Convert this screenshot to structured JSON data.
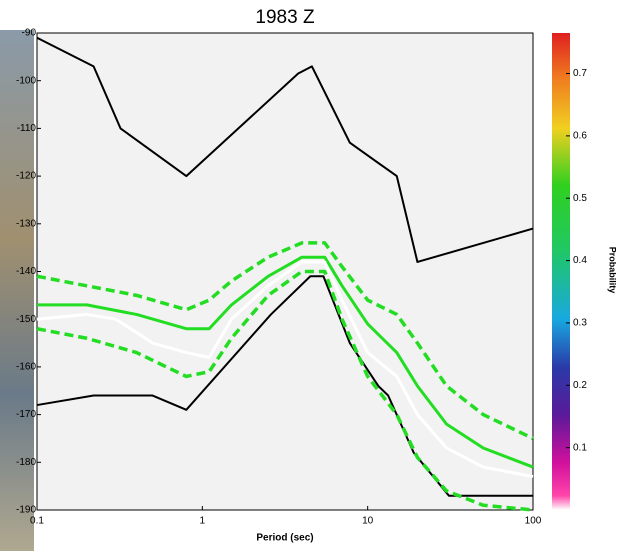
{
  "chart_data": {
    "type": "line",
    "title": "1983 Z",
    "x_label": "Period (sec)",
    "log_x": true,
    "xlim": [
      0.1,
      100
    ],
    "xticks": [
      0.1,
      1,
      10,
      100
    ],
    "ylim": [
      -190,
      -90
    ],
    "yticks": [
      -190,
      -180,
      -170,
      -160,
      -150,
      -140,
      -130,
      -120,
      -110,
      -100,
      -90
    ],
    "series": [
      {
        "color": "#000000",
        "dash": false,
        "width": 2,
        "x": [
          0.1,
          0.22,
          0.32,
          0.8,
          3.8,
          4.6,
          7.8,
          15,
          20,
          100
        ],
        "values": [
          -91,
          -97,
          -110,
          -120,
          -98.5,
          -97,
          -113,
          -120,
          -138,
          -131
        ]
      },
      {
        "color": "#000000",
        "dash": false,
        "width": 2,
        "x": [
          0.1,
          0.22,
          0.5,
          0.8,
          2.6,
          4.5,
          5.4,
          7.8,
          11.6,
          13.3,
          19,
          31,
          83,
          100
        ],
        "values": [
          -168,
          -166,
          -166,
          -169,
          -149,
          -141,
          -141,
          -155,
          -164,
          -166,
          -178,
          -187,
          -187,
          -187
        ]
      },
      {
        "color": "#22dd22",
        "dash": true,
        "width": 3.5,
        "x": [
          0.1,
          0.2,
          0.4,
          0.8,
          1.1,
          1.5,
          2.5,
          4,
          5.5,
          7,
          10,
          15,
          20,
          30,
          50,
          100
        ],
        "values": [
          -141,
          -143,
          -145,
          -148,
          -146,
          -142,
          -137,
          -134,
          -134,
          -139,
          -146,
          -149,
          -155,
          -164,
          -170,
          -175
        ]
      },
      {
        "color": "#22dd22",
        "dash": true,
        "width": 3.5,
        "x": [
          0.1,
          0.2,
          0.4,
          0.8,
          1.1,
          1.5,
          2.5,
          4,
          5.5,
          7,
          10,
          15,
          20,
          30,
          50,
          100
        ],
        "values": [
          -152,
          -154,
          -157,
          -162,
          -161,
          -154,
          -145,
          -140,
          -140,
          -150,
          -162,
          -170,
          -179,
          -186,
          -189,
          -190
        ]
      },
      {
        "color": "#22dd22",
        "dash": false,
        "width": 3,
        "x": [
          0.1,
          0.2,
          0.4,
          0.8,
          1.1,
          1.5,
          2.5,
          4,
          5.5,
          7,
          10,
          15,
          20,
          30,
          50,
          100
        ],
        "values": [
          -147,
          -147,
          -149,
          -152,
          -152,
          -147,
          -141,
          -137,
          -137,
          -143,
          -151,
          -157,
          -164,
          -172,
          -177,
          -181
        ]
      },
      {
        "color": "#ffffff",
        "dash": false,
        "width": 3,
        "x": [
          0.1,
          0.2,
          0.3,
          0.5,
          0.8,
          1.1,
          1.5,
          2.5,
          4,
          5.5,
          7,
          10,
          15,
          20,
          30,
          50,
          100
        ],
        "values": [
          -150,
          -149,
          -150,
          -155,
          -157,
          -158,
          -150,
          -143,
          -138,
          -138,
          -146,
          -157,
          -162,
          -170,
          -177,
          -181,
          -183
        ]
      }
    ],
    "colorbar": {
      "label": "Probability",
      "lim": [
        0,
        0.765
      ],
      "ticks": [
        0.1,
        0.2,
        0.3,
        0.4,
        0.5,
        0.6,
        0.7
      ]
    }
  }
}
